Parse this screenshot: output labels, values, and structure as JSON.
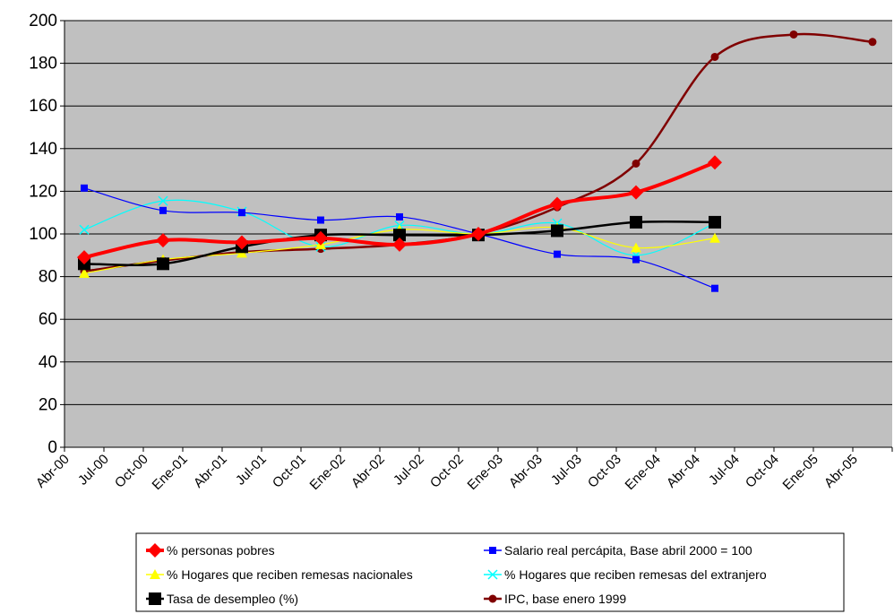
{
  "chart_data": {
    "type": "line",
    "title": "",
    "xlabel": "",
    "ylabel": "",
    "ylim": [
      0,
      200
    ],
    "yticks": [
      0,
      20,
      40,
      60,
      80,
      100,
      120,
      140,
      160,
      180,
      200
    ],
    "grid": true,
    "plot_background": "#c0c0c0",
    "legend_position": "bottom",
    "x_axis_labels": [
      "Abr-00",
      "Jul-00",
      "Oct-00",
      "Ene-01",
      "Abr-01",
      "Jul-01",
      "Oct-01",
      "Ene-02",
      "Abr-02",
      "Jul-02",
      "Oct-02",
      "Ene-03",
      "Abr-03",
      "Jul-03",
      "Oct-03",
      "Ene-04",
      "Abr-04",
      "Jul-04",
      "Oct-04",
      "Ene-05",
      "Abr-05"
    ],
    "series": [
      {
        "name": "% personas pobres",
        "color": "#ff0000",
        "marker": "diamond",
        "width": 4,
        "points": [
          [
            "Abr-00",
            89
          ],
          [
            "Oct-00",
            97
          ],
          [
            "Abr-01",
            96
          ],
          [
            "Oct-01",
            98
          ],
          [
            "Abr-02",
            95
          ],
          [
            "Oct-02",
            100
          ],
          [
            "Abr-03",
            114
          ],
          [
            "Oct-03",
            119.5
          ],
          [
            "Abr-04",
            133.5
          ]
        ]
      },
      {
        "name": "Salario real percápita, Base abril 2000 = 100",
        "color": "#0000ff",
        "marker": "square-small",
        "width": 1.2,
        "points": [
          [
            "Abr-00",
            121.5
          ],
          [
            "Oct-00",
            111
          ],
          [
            "Abr-01",
            110
          ],
          [
            "Oct-01",
            106.5
          ],
          [
            "Abr-02",
            108
          ],
          [
            "Oct-02",
            100
          ],
          [
            "Abr-03",
            90.5
          ],
          [
            "Oct-03",
            88
          ],
          [
            "Abr-04",
            74.5
          ]
        ]
      },
      {
        "name": "% Hogares que reciben remesas nacionales",
        "color": "#ffff00",
        "marker": "triangle",
        "width": 1.2,
        "points": [
          [
            "Abr-00",
            81.5
          ],
          [
            "Oct-00",
            88
          ],
          [
            "Abr-01",
            91
          ],
          [
            "Oct-01",
            95
          ],
          [
            "Abr-02",
            102
          ],
          [
            "Oct-02",
            100
          ],
          [
            "Abr-03",
            103
          ],
          [
            "Oct-03",
            93.5
          ],
          [
            "Abr-04",
            98
          ]
        ]
      },
      {
        "name": "% Hogares que reciben remesas del extranjero",
        "color": "#00ffff",
        "marker": "x",
        "width": 1.2,
        "points": [
          [
            "Abr-00",
            102
          ],
          [
            "Oct-00",
            115.5
          ],
          [
            "Abr-01",
            110.5
          ],
          [
            "Oct-01",
            94
          ],
          [
            "Abr-02",
            104
          ],
          [
            "Oct-02",
            100
          ],
          [
            "Abr-03",
            105
          ],
          [
            "Oct-03",
            90
          ],
          [
            "Abr-04",
            105
          ]
        ]
      },
      {
        "name": "Tasa de desempleo (%)",
        "color": "#000000",
        "marker": "square",
        "width": 2.5,
        "points": [
          [
            "Abr-00",
            86
          ],
          [
            "Oct-00",
            86
          ],
          [
            "Abr-01",
            94
          ],
          [
            "Oct-01",
            99.5
          ],
          [
            "Abr-02",
            99.5
          ],
          [
            "Oct-02",
            99.5
          ],
          [
            "Abr-03",
            101.5
          ],
          [
            "Oct-03",
            105.5
          ],
          [
            "Abr-04",
            105.5
          ]
        ]
      },
      {
        "name": "IPC, base enero 1999",
        "color": "#800000",
        "marker": "circle",
        "width": 2.5,
        "points": [
          [
            "Abr-00",
            82.5
          ],
          [
            "Oct-00",
            87.5
          ],
          [
            "Abr-01",
            91.5
          ],
          [
            "Oct-01",
            93
          ],
          [
            "Abr-02",
            95
          ],
          [
            "Oct-02",
            100
          ],
          [
            "Abr-03",
            112.5
          ],
          [
            "Oct-03",
            133
          ],
          [
            "Abr-04",
            183
          ],
          [
            "Oct-04",
            193.5
          ],
          [
            "Abr-05",
            190
          ]
        ]
      }
    ]
  }
}
